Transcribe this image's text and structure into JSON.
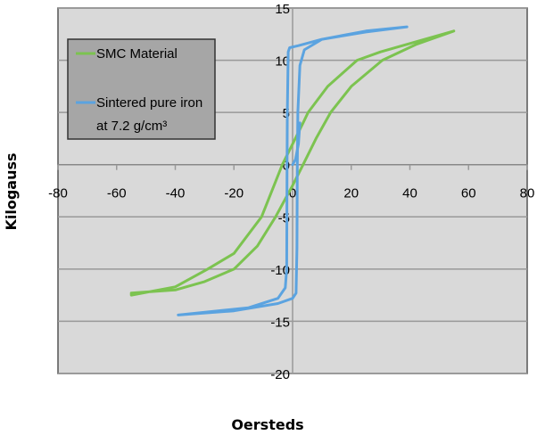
{
  "chart_data": {
    "type": "line",
    "title": "",
    "xlabel": "Oersteds",
    "ylabel": "Kilogauss",
    "xlim": [
      -80,
      80
    ],
    "ylim": [
      -20,
      15
    ],
    "xticks": [
      "-80",
      "-60",
      "-40",
      "-20",
      "0",
      "20",
      "40",
      "60",
      "80"
    ],
    "yticks": [
      "15",
      "10",
      "5",
      "0",
      "-5",
      "-10",
      "-15",
      "-20"
    ],
    "grid": true,
    "legend_position": "top-left",
    "background": "#d9d9d9",
    "series": [
      {
        "name": "SMC Material",
        "color": "#7cc350",
        "x": [
          55,
          40,
          30,
          22,
          12,
          5.3,
          3.6,
          -3.5,
          -10.6,
          -20,
          -29,
          -40,
          -55,
          -55,
          -40,
          -30,
          -20,
          -12,
          -5.8,
          0,
          3.6,
          8,
          13,
          20,
          30.6,
          42,
          55
        ],
        "y": [
          12.8,
          11.6,
          10.8,
          10,
          7.5,
          5,
          4,
          0,
          -5,
          -8.5,
          -10,
          -11.7,
          -12.5,
          -12.3,
          -12,
          -11.2,
          -10,
          -7.8,
          -5,
          -2,
          0,
          2.5,
          5,
          7.5,
          10,
          11.5,
          12.8
        ]
      },
      {
        "name": "Sintered pure iron at 7.2 g/cm³",
        "color": "#5ba3e0",
        "x": [
          39,
          25,
          10,
          2,
          -1,
          -1.5,
          -1.8,
          -1.9,
          -2,
          -2.5,
          -5,
          -15,
          -39,
          -39,
          -20,
          -5,
          0,
          1.2,
          1.5,
          1.6,
          1.8,
          2.5,
          4,
          10,
          25,
          39
        ],
        "y": [
          13.2,
          12.7,
          12,
          11.4,
          11.2,
          10.8,
          5,
          0,
          -10,
          -11.8,
          -12.8,
          -13.7,
          -14.4,
          -14.4,
          -14,
          -13.3,
          -12.8,
          -12.3,
          -8,
          0,
          5,
          9.5,
          11,
          12,
          12.8,
          13.2
        ]
      },
      {
        "name": "",
        "color": "#5ba3e0",
        "x": [
          0,
          1,
          2,
          2.5
        ],
        "y": [
          0,
          0.5,
          2,
          4
        ]
      }
    ],
    "legend": [
      "SMC Material",
      "Sintered pure iron",
      "at 7.2 g/cm³"
    ]
  }
}
